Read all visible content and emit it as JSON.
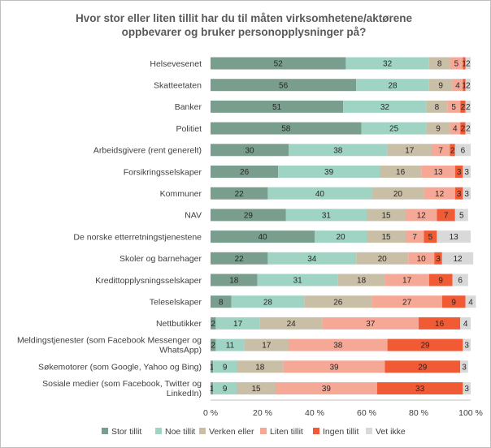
{
  "chart_data": {
    "type": "bar",
    "orientation": "horizontal",
    "stacked": true,
    "percent": true,
    "title_lines": [
      "Hvor stor  eller liten tillit har du til måten virksomhetene/aktørene",
      "oppbevarer og bruker personopplysninger  på?"
    ],
    "categories": [
      "Helsevesenet",
      "Skatteetaten",
      "Banker",
      "Politiet",
      "Arbeidsgivere (rent generelt)",
      "Forsikringsselskaper",
      "Kommuner",
      "NAV",
      "De norske etterretningstjenestene",
      "Skoler og barnehager",
      "Kredittopplysningsselskaper",
      "Teleselskaper",
      "Nettbutikker",
      "Meldingstjenester (som Facebook Messenger og WhatsApp)",
      "Søkemotorer (som Google, Yahoo og Bing)",
      "Sosiale medier (som Facebook, Twitter og LinkedIn)"
    ],
    "series": [
      {
        "name": "Stor tillit",
        "color": "#7a9e8e",
        "values": [
          52,
          56,
          51,
          58,
          30,
          26,
          22,
          29,
          40,
          22,
          18,
          8,
          2,
          2,
          1,
          1
        ]
      },
      {
        "name": "Noe tillit",
        "color": "#9fd4c4",
        "values": [
          32,
          28,
          32,
          25,
          38,
          39,
          40,
          31,
          20,
          34,
          31,
          28,
          17,
          11,
          9,
          9
        ]
      },
      {
        "name": "Verken eller",
        "color": "#c9bea6",
        "values": [
          8,
          9,
          8,
          9,
          17,
          16,
          20,
          15,
          15,
          20,
          18,
          26,
          24,
          17,
          18,
          15
        ]
      },
      {
        "name": "Liten tillit",
        "color": "#f5a895",
        "values": [
          5,
          4,
          5,
          4,
          7,
          13,
          12,
          12,
          7,
          10,
          17,
          27,
          37,
          38,
          39,
          39
        ]
      },
      {
        "name": "Ingen tillit",
        "color": "#f05a35",
        "values": [
          1,
          1,
          2,
          2,
          2,
          3,
          3,
          7,
          5,
          3,
          9,
          9,
          16,
          29,
          29,
          33
        ]
      },
      {
        "name": "Vet ikke",
        "color": "#d9d9d9",
        "values": [
          2,
          2,
          2,
          2,
          6,
          3,
          3,
          5,
          13,
          12,
          6,
          4,
          4,
          3,
          3,
          3
        ]
      }
    ],
    "xlim": [
      0,
      100
    ],
    "xticks": [
      "0 %",
      "20 %",
      "40 %",
      "60 %",
      "80 %",
      "100 %"
    ],
    "grid": false,
    "legend_position": "bottom"
  }
}
